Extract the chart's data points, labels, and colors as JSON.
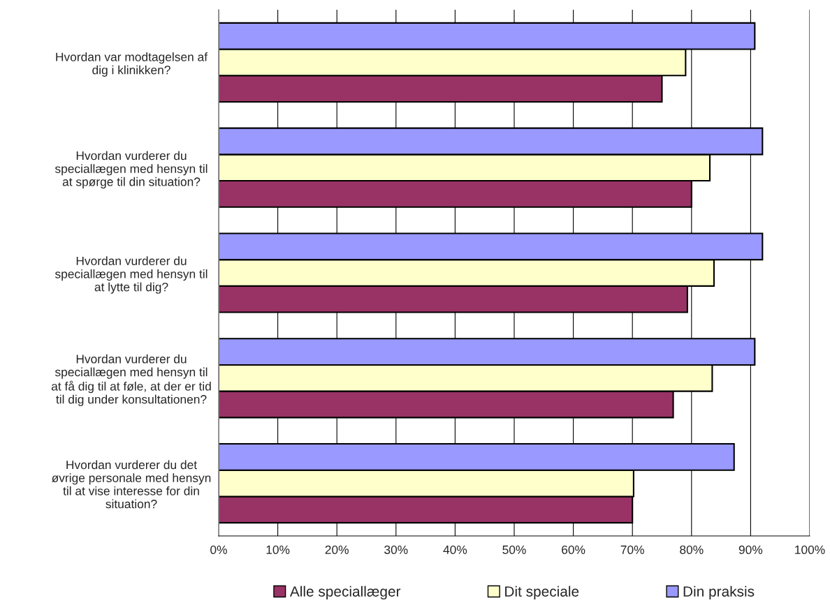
{
  "chart_data": {
    "type": "bar",
    "orientation": "horizontal",
    "categories": [
      "Hvordan var modtagelsen af\ndig i klinikken?",
      "Hvordan vurderer du\nspeciallægen med hensyn til\nat spørge til din situation?",
      "Hvordan vurderer du\nspeciallægen med hensyn til\nat lytte til dig?",
      "Hvordan vurderer du\nspeciallægen med hensyn til\nat få dig til at føle, at der er tid\ntil dig under konsultationen?",
      "Hvordan vurderer du det\nøvrige personale med hensyn\ntil at vise interesse for din\nsituation?"
    ],
    "series": [
      {
        "name": "Alle speciallæger",
        "color": "#993366",
        "values": [
          75.0,
          80.0,
          79.3,
          76.9,
          70.0
        ]
      },
      {
        "name": "Dit speciale",
        "color": "#ffffcc",
        "values": [
          79.0,
          83.1,
          83.8,
          83.5,
          70.2
        ]
      },
      {
        "name": "Din praksis",
        "color": "#9999ff",
        "values": [
          90.7,
          92.0,
          92.0,
          90.7,
          87.2
        ]
      }
    ],
    "xlim": [
      0,
      100
    ],
    "xticks": [
      {
        "value": 0,
        "label": "0%"
      },
      {
        "value": 10,
        "label": "10%"
      },
      {
        "value": 20,
        "label": "20%"
      },
      {
        "value": 30,
        "label": "30%"
      },
      {
        "value": 40,
        "label": "40%"
      },
      {
        "value": 50,
        "label": "50%"
      },
      {
        "value": 60,
        "label": "60%"
      },
      {
        "value": 70,
        "label": "70%"
      },
      {
        "value": 80,
        "label": "80%"
      },
      {
        "value": 90,
        "label": "90%"
      },
      {
        "value": 100,
        "label": "100%"
      }
    ],
    "grid": "x",
    "legend": "bottom"
  }
}
